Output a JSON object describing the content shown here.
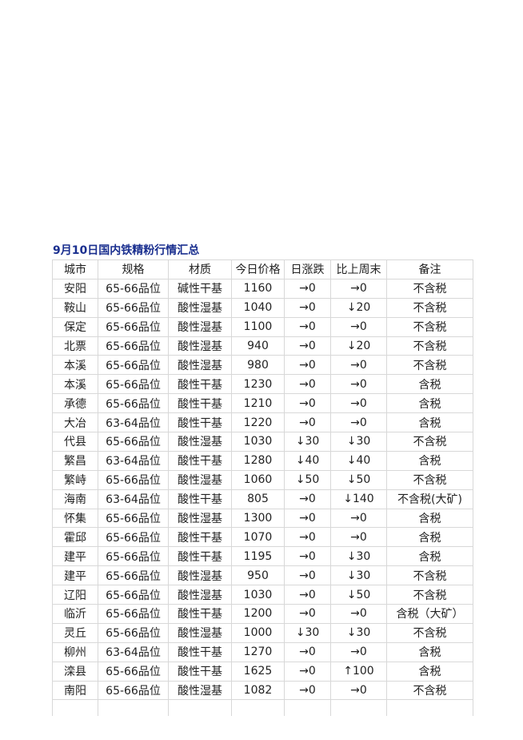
{
  "title": "9月10日国内铁精粉行情汇总",
  "table": {
    "headers": [
      "城市",
      "规格",
      "材质",
      "今日价格",
      "日涨跌",
      "比上周末",
      "备注"
    ],
    "rows": [
      [
        "安阳",
        "65-66品位",
        "碱性干基",
        "1160",
        "→0",
        "→0",
        "不含税"
      ],
      [
        "鞍山",
        "65-66品位",
        "酸性湿基",
        "1040",
        "→0",
        "↓20",
        "不含税"
      ],
      [
        "保定",
        "65-66品位",
        "酸性湿基",
        "1100",
        "→0",
        "→0",
        "不含税"
      ],
      [
        "北票",
        "65-66品位",
        "酸性湿基",
        "940",
        "→0",
        "↓20",
        "不含税"
      ],
      [
        "本溪",
        "65-66品位",
        "酸性湿基",
        "980",
        "→0",
        "→0",
        "不含税"
      ],
      [
        "本溪",
        "65-66品位",
        "酸性干基",
        "1230",
        "→0",
        "→0",
        "含税"
      ],
      [
        "承德",
        "65-66品位",
        "酸性干基",
        "1210",
        "→0",
        "→0",
        "含税"
      ],
      [
        "大冶",
        "63-64品位",
        "酸性干基",
        "1220",
        "→0",
        "→0",
        "含税"
      ],
      [
        "代县",
        "65-66品位",
        "酸性湿基",
        "1030",
        "↓30",
        "↓30",
        "不含税"
      ],
      [
        "繁昌",
        "63-64品位",
        "酸性干基",
        "1280",
        "↓40",
        "↓40",
        "含税"
      ],
      [
        "繁峙",
        "65-66品位",
        "酸性湿基",
        "1060",
        "↓50",
        "↓50",
        "不含税"
      ],
      [
        "海南",
        "63-64品位",
        "酸性干基",
        "805",
        "→0",
        "↓140",
        "不含税(大矿)"
      ],
      [
        "怀集",
        "65-66品位",
        "酸性湿基",
        "1300",
        "→0",
        "→0",
        "含税"
      ],
      [
        "霍邱",
        "65-66品位",
        "酸性干基",
        "1070",
        "→0",
        "→0",
        "含税"
      ],
      [
        "建平",
        "65-66品位",
        "酸性干基",
        "1195",
        "→0",
        "↓30",
        "含税"
      ],
      [
        "建平",
        "65-66品位",
        "酸性湿基",
        "950",
        "→0",
        "↓30",
        "不含税"
      ],
      [
        "辽阳",
        "65-66品位",
        "酸性湿基",
        "1030",
        "→0",
        "↓50",
        "不含税"
      ],
      [
        "临沂",
        "65-66品位",
        "酸性干基",
        "1200",
        "→0",
        "→0",
        "含税（大矿）"
      ],
      [
        "灵丘",
        "65-66品位",
        "酸性湿基",
        "1000",
        "↓30",
        "↓30",
        "不含税"
      ],
      [
        "柳州",
        "63-64品位",
        "酸性干基",
        "1270",
        "→0",
        "→0",
        "含税"
      ],
      [
        "滦县",
        "65-66品位",
        "酸性干基",
        "1625",
        "→0",
        "↑100",
        "含税"
      ],
      [
        "南阳",
        "65-66品位",
        "酸性湿基",
        "1082",
        "→0",
        "→0",
        "不含税"
      ]
    ]
  }
}
